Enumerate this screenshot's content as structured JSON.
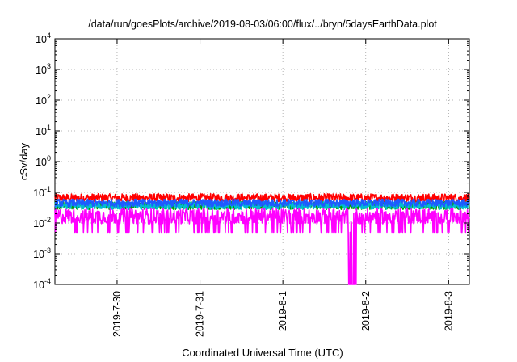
{
  "chart_data": {
    "type": "line",
    "title": "/data/run/goesPlots/archive/2019-08-03/06:00/flux/../bryn/5daysEarthData.plot",
    "xlabel": "Coordinated Universal Time (UTC)",
    "ylabel": "cSv/day",
    "yscale": "log",
    "ylim": [
      0.0001,
      10000
    ],
    "yticks": [
      {
        "exp": -4,
        "base": "10",
        "sup": "-4"
      },
      {
        "exp": -3,
        "base": "10",
        "sup": "-3"
      },
      {
        "exp": -2,
        "base": "10",
        "sup": "-2"
      },
      {
        "exp": -1,
        "base": "10",
        "sup": "-1"
      },
      {
        "exp": 0,
        "base": "10",
        "sup": "0"
      },
      {
        "exp": 1,
        "base": "10",
        "sup": "1"
      },
      {
        "exp": 2,
        "base": "10",
        "sup": "2"
      },
      {
        "exp": 3,
        "base": "10",
        "sup": "3"
      },
      {
        "exp": 4,
        "base": "10",
        "sup": "4"
      }
    ],
    "xlim": [
      "2019-07-29 06:00",
      "2019-08-03 06:00"
    ],
    "xticks": [
      "2019-7-30",
      "2019-7-31",
      "2019-8-1",
      "2019-8-2",
      "2019-8-3"
    ],
    "grid": true,
    "legend": "none",
    "series": [
      {
        "color": "#ff0000",
        "typical_range": [
          0.035,
          0.09
        ]
      },
      {
        "color": "#00a000",
        "typical_range": [
          0.02,
          0.05
        ]
      },
      {
        "color": "#00bcd4",
        "typical_range": [
          0.02,
          0.05
        ]
      },
      {
        "color": "#1e5aff",
        "typical_range": [
          0.025,
          0.06
        ]
      },
      {
        "color": "#ff00ff",
        "typical_range": [
          0.005,
          0.03
        ],
        "dropout_near": "2019-8-1 20:00",
        "dropout_min": 0.0001
      }
    ]
  }
}
